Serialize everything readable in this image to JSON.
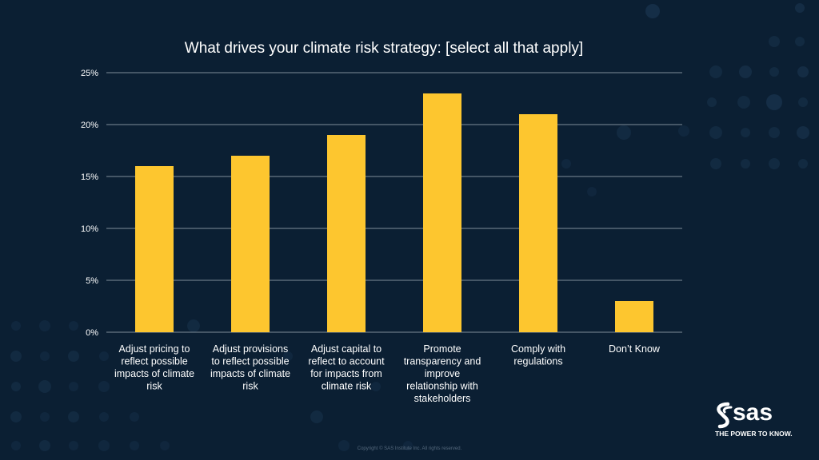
{
  "chart_data": {
    "type": "bar",
    "title": "What drives your climate risk strategy: [select all that apply]",
    "categories": [
      [
        "Adjust pricing to",
        "reflect possible",
        "impacts of climate",
        "risk"
      ],
      [
        "Adjust provisions",
        "to reflect possible",
        "impacts of climate",
        "risk"
      ],
      [
        "Adjust capital to",
        "reflect to account",
        "for impacts from",
        "climate risk"
      ],
      [
        "Promote",
        "transparency and",
        "improve",
        "relationship with",
        "stakeholders"
      ],
      [
        "Comply with",
        "regulations"
      ],
      [
        "Don’t Know"
      ]
    ],
    "values": [
      16,
      17,
      19,
      23,
      21,
      3
    ],
    "ylim": [
      0,
      25
    ],
    "yticks": [
      "0%",
      "5%",
      "10%",
      "15%",
      "20%",
      "25%"
    ],
    "ytick_values": [
      0,
      5,
      10,
      15,
      20,
      25
    ],
    "grid": true,
    "colors": {
      "bar": "#fdc62f",
      "grid": "#7f8c99",
      "text": "#ffffff",
      "background": "#0b1f33"
    }
  },
  "logo": {
    "word": "sas",
    "tagline": "THE POWER TO KNOW."
  },
  "footer": {
    "copyright": "Copyright © SAS Institute Inc. All rights reserved."
  }
}
